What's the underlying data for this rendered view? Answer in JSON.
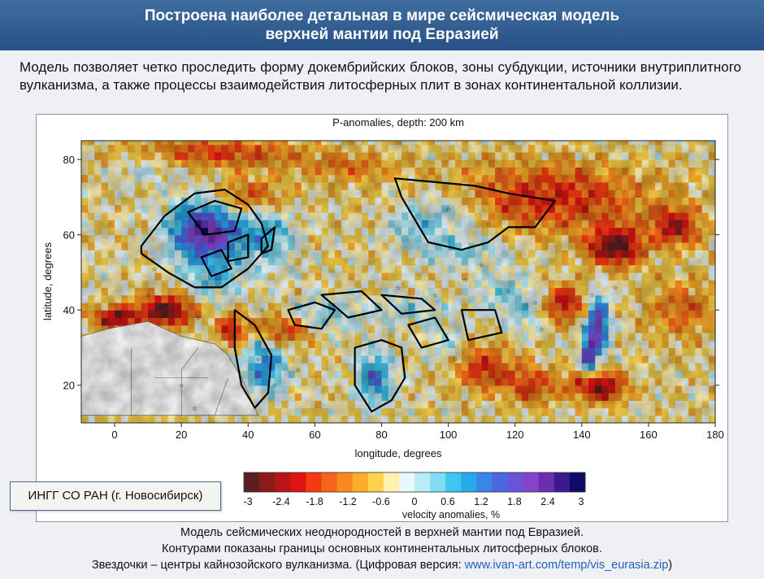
{
  "header": {
    "line1": "Построена наиболее детальная в мире сейсмическая модель",
    "line2": "верхней мантии под Евразией"
  },
  "intro": {
    "text": "Модель позволяет четко проследить форму докембрийских блоков, зоны субдукции, источники внутриплитного вулканизма, а также процессы взаимодействия литосферных плит в зонах континентальной коллизии."
  },
  "org_label": "ИНГГ СО РАН (г. Новосибирск)",
  "caption": {
    "line1": "Модель сейсмических неоднородностей в верхней мантии под Евразией.",
    "line2": "Контурами показаны границы основных континентальных литосферных блоков.",
    "line3_text": "Звездочки – центры кайнозойского вулканизма. (Цифровая версия: ",
    "line3_link": "www.ivan-art.com/temp/vis_eurasia.zip",
    "line3_end": ")"
  },
  "chart_data": {
    "type": "heatmap",
    "title": "P-anomalies, depth: 200 km",
    "xlabel": "longitude, degrees",
    "ylabel": "latitude, degrees",
    "xlim": [
      -10,
      180
    ],
    "ylim": [
      10,
      85
    ],
    "x_ticks": [
      0,
      20,
      40,
      60,
      80,
      100,
      120,
      140,
      160,
      180
    ],
    "y_ticks": [
      20,
      40,
      60,
      80
    ],
    "colorbar": {
      "label": "velocity anomalies, %",
      "range": [
        -3,
        3
      ],
      "tick_labels": [
        "-3",
        "-2.4",
        "-1.8",
        "-1.2",
        "-0.6",
        "0",
        "0.6",
        "1.2",
        "1.8",
        "2.4",
        "3"
      ],
      "colors": [
        "#5c1f1f",
        "#8a1b1b",
        "#b81616",
        "#e01313",
        "#f33a12",
        "#f6641a",
        "#f8891e",
        "#f9ad2b",
        "#fbd24a",
        "#fdf0b0",
        "#e8f8fb",
        "#b8ecf6",
        "#7fdcf2",
        "#3fc6ee",
        "#29a8ea",
        "#3a86e6",
        "#4d66e2",
        "#6a52db",
        "#8743c9",
        "#6a2fb0",
        "#3a1a8c",
        "#0f0a66"
      ]
    },
    "legend_position": "bottom"
  }
}
